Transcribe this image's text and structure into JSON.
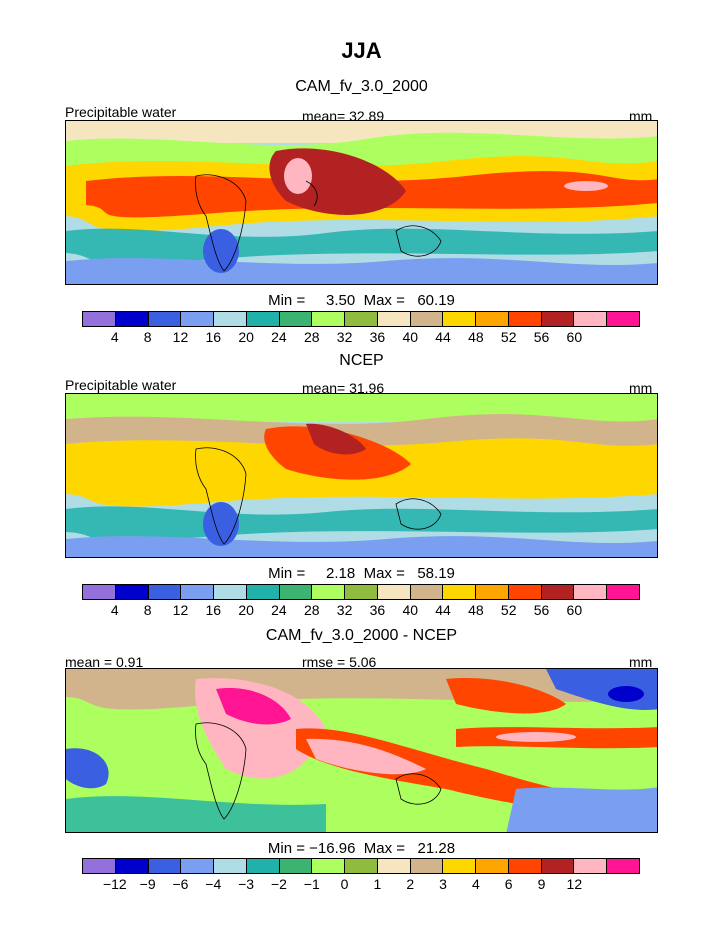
{
  "title": "JJA",
  "colors": [
    "#9370DB",
    "#0000CD",
    "#3A5FE0",
    "#7B9FF0",
    "#B0DCE6",
    "#20B2AA",
    "#3CB371",
    "#ADFF5F",
    "#8FBC3F",
    "#F5E6C0",
    "#D2B48C",
    "#FFD700",
    "#FFA500",
    "#FF4500",
    "#B22222",
    "#FFB6C1",
    "#FF1493"
  ],
  "panels": [
    {
      "title": "CAM_fv_3.0_2000",
      "left_label": "Precipitable water",
      "center_label": "mean=   32.89",
      "right_label": "mm",
      "stats": "Min =     3.50  Max =   60.19",
      "ticks": [
        "4",
        "8",
        "12",
        "16",
        "20",
        "24",
        "28",
        "32",
        "36",
        "40",
        "44",
        "48",
        "52",
        "56",
        "60"
      ]
    },
    {
      "title": "NCEP",
      "left_label": "Precipitable water",
      "center_label": "mean=   31.96",
      "right_label": "mm",
      "stats": "Min =     2.18  Max =   58.19",
      "ticks": [
        "4",
        "8",
        "12",
        "16",
        "20",
        "24",
        "28",
        "32",
        "36",
        "40",
        "44",
        "48",
        "52",
        "56",
        "60"
      ]
    },
    {
      "title": "CAM_fv_3.0_2000 - NCEP",
      "left_label": "mean =     0.91",
      "center_label": "rmse =     5.06",
      "right_label": "mm",
      "stats": "Min = −16.96  Max =   21.28",
      "ticks": [
        "−12",
        "−9",
        "−6",
        "−4",
        "−3",
        "−2",
        "−1",
        "0",
        "1",
        "2",
        "3",
        "4",
        "6",
        "9",
        "12"
      ]
    }
  ]
}
